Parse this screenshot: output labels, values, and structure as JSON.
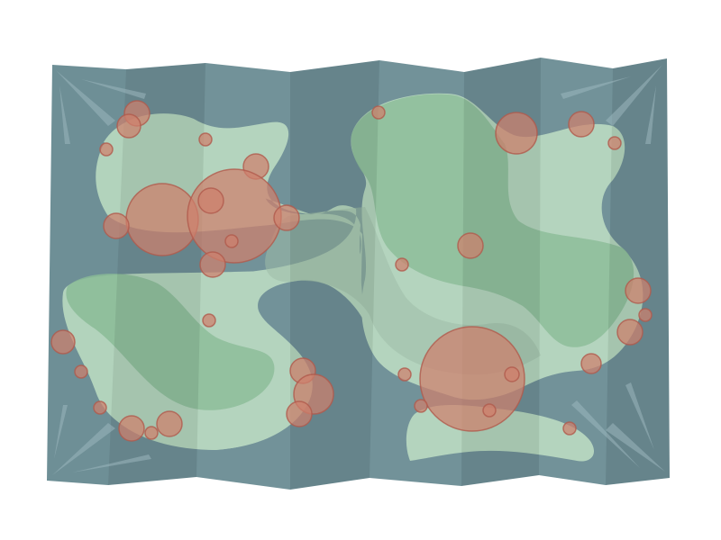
{
  "map": {
    "colors": {
      "sea": "#6e8f96",
      "sea_dark": "#5f7f86",
      "land": "#b2d3bc",
      "land_mid": "#9cbba6",
      "forest": "#89bb96",
      "marker_fill": "#cf7f6c",
      "marker_stroke": "#b05a4c",
      "fold_highlight": "#9bb7bd"
    },
    "panels": 8,
    "icons": [
      "folded-map-icon"
    ],
    "marker_count": 36
  }
}
